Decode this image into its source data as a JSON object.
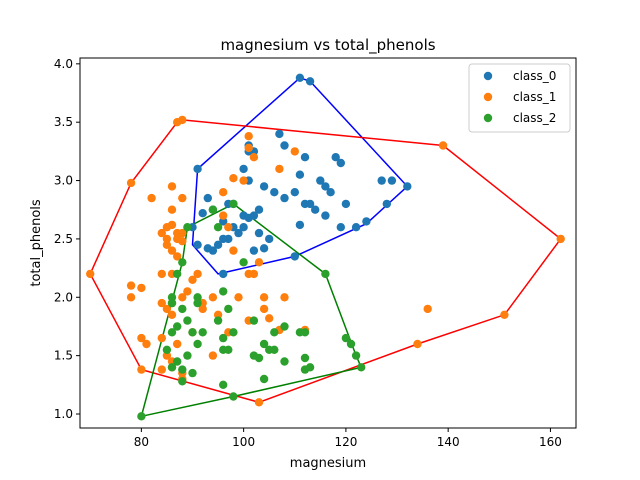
{
  "chart_data": {
    "type": "scatter",
    "title": "magnesium vs total_phenols",
    "xlabel": "magnesium",
    "ylabel": "total_phenols",
    "xlim": [
      68,
      165
    ],
    "ylim": [
      0.88,
      4.05
    ],
    "xticks": [
      80,
      100,
      120,
      140,
      160
    ],
    "xtick_labels": [
      "80",
      "100",
      "120",
      "140",
      "160"
    ],
    "yticks": [
      1.0,
      1.5,
      2.0,
      2.5,
      3.0,
      3.5,
      4.0
    ],
    "ytick_labels": [
      "1.0",
      "1.5",
      "2.0",
      "2.5",
      "3.0",
      "3.5",
      "4.0"
    ],
    "grid": false,
    "legend_position": "top-right",
    "series": [
      {
        "name": "class_0",
        "color": "#1f77b4",
        "hull_color": "#0000ff",
        "points": [
          [
            111,
            3.88
          ],
          [
            113,
            3.85
          ],
          [
            107,
            3.4
          ],
          [
            108,
            3.3
          ],
          [
            101,
            3.3
          ],
          [
            112,
            3.2
          ],
          [
            118,
            3.2
          ],
          [
            119,
            3.15
          ],
          [
            127,
            3.0
          ],
          [
            129,
            3.0
          ],
          [
            132,
            2.95
          ],
          [
            115,
            3.0
          ],
          [
            116,
            2.95
          ],
          [
            117,
            2.9
          ],
          [
            111,
            3.05
          ],
          [
            104,
            2.95
          ],
          [
            106,
            2.9
          ],
          [
            108,
            2.85
          ],
          [
            110,
            2.9
          ],
          [
            112,
            2.8
          ],
          [
            120,
            2.8
          ],
          [
            128,
            2.8
          ],
          [
            114,
            2.75
          ],
          [
            116,
            2.7
          ],
          [
            124,
            2.65
          ],
          [
            119,
            2.6
          ],
          [
            122,
            2.6
          ],
          [
            101,
            3.25
          ],
          [
            102,
            3.25
          ],
          [
            100,
            3.1
          ],
          [
            101,
            3.0
          ],
          [
            103,
            2.75
          ],
          [
            102,
            2.7
          ],
          [
            100,
            2.7
          ],
          [
            98,
            2.8
          ],
          [
            97,
            2.8
          ],
          [
            93,
            2.85
          ],
          [
            94,
            2.75
          ],
          [
            96,
            2.65
          ],
          [
            98,
            2.6
          ],
          [
            97,
            2.5
          ],
          [
            96,
            2.5
          ],
          [
            95,
            2.45
          ],
          [
            94,
            2.4
          ],
          [
            93,
            2.42
          ],
          [
            91,
            2.45
          ],
          [
            102,
            2.4
          ],
          [
            104,
            2.42
          ],
          [
            110,
            2.35
          ],
          [
            111,
            2.62
          ],
          [
            113,
            2.8
          ],
          [
            100,
            2.6
          ],
          [
            99,
            2.55
          ],
          [
            101,
            2.68
          ],
          [
            103,
            2.55
          ],
          [
            105,
            2.5
          ],
          [
            91,
            3.1
          ],
          [
            90,
            2.6
          ],
          [
            92,
            2.72
          ],
          [
            96,
            2.2
          ]
        ],
        "hull": [
          [
            111,
            3.88
          ],
          [
            113,
            3.85
          ],
          [
            132,
            2.95
          ],
          [
            124,
            2.63
          ],
          [
            110,
            2.35
          ],
          [
            97,
            2.22
          ],
          [
            95,
            2.2
          ],
          [
            90,
            2.45
          ],
          [
            91,
            3.1
          ]
        ]
      },
      {
        "name": "class_1",
        "color": "#ff7f0e",
        "hull_color": "#ff0000",
        "points": [
          [
            88,
            3.52
          ],
          [
            87,
            3.5
          ],
          [
            78,
            2.98
          ],
          [
            82,
            2.85
          ],
          [
            84,
            2.55
          ],
          [
            85,
            2.6
          ],
          [
            86,
            2.62
          ],
          [
            87,
            2.55
          ],
          [
            85,
            2.5
          ],
          [
            85,
            2.45
          ],
          [
            86,
            2.4
          ],
          [
            87,
            2.5
          ],
          [
            88,
            2.48
          ],
          [
            86,
            2.95
          ],
          [
            88,
            2.85
          ],
          [
            86,
            2.75
          ],
          [
            84,
            2.2
          ],
          [
            86,
            2.2
          ],
          [
            87,
            2.35
          ],
          [
            88,
            2.55
          ],
          [
            78,
            2.1
          ],
          [
            80,
            2.08
          ],
          [
            78,
            2.0
          ],
          [
            84,
            1.95
          ],
          [
            86,
            1.95
          ],
          [
            88,
            2.0
          ],
          [
            85,
            1.9
          ],
          [
            86,
            1.85
          ],
          [
            89,
            2.05
          ],
          [
            90,
            2.15
          ],
          [
            92,
            1.95
          ],
          [
            91,
            2.2
          ],
          [
            92,
            1.9
          ],
          [
            95,
            1.85
          ],
          [
            99,
            2.0
          ],
          [
            98,
            2.4
          ],
          [
            97,
            2.6
          ],
          [
            96,
            2.9
          ],
          [
            96,
            2.7
          ],
          [
            94,
            2.0
          ],
          [
            100,
            3.0
          ],
          [
            98,
            3.02
          ],
          [
            101,
            3.38
          ],
          [
            101,
            3.28
          ],
          [
            102,
            3.2
          ],
          [
            107,
            3.1
          ],
          [
            110,
            3.25
          ],
          [
            103,
            2.3
          ],
          [
            101,
            2.2
          ],
          [
            102,
            2.2
          ],
          [
            104,
            2.0
          ],
          [
            105,
            1.82
          ],
          [
            107,
            1.72
          ],
          [
            108,
            2.0
          ],
          [
            112,
            1.72
          ],
          [
            101,
            1.8
          ],
          [
            97,
            1.7
          ],
          [
            90,
            1.7
          ],
          [
            87,
            1.6
          ],
          [
            84,
            1.65
          ],
          [
            80,
            1.65
          ],
          [
            81,
            1.6
          ],
          [
            85,
            1.5
          ],
          [
            86,
            1.45
          ],
          [
            88,
            1.35
          ],
          [
            86,
            1.4
          ],
          [
            88,
            1.3
          ],
          [
            94,
            1.5
          ],
          [
            103,
            1.1
          ],
          [
            104,
            1.9
          ],
          [
            136,
            1.9
          ],
          [
            134,
            1.6
          ],
          [
            151,
            1.85
          ],
          [
            162,
            2.5
          ],
          [
            139,
            3.3
          ],
          [
            70,
            2.2
          ],
          [
            80,
            1.38
          ],
          [
            84,
            1.38
          ]
        ],
        "hull": [
          [
            88,
            3.52
          ],
          [
            139,
            3.3
          ],
          [
            162,
            2.5
          ],
          [
            151,
            1.85
          ],
          [
            134,
            1.6
          ],
          [
            103,
            1.1
          ],
          [
            80,
            1.38
          ],
          [
            70,
            2.2
          ],
          [
            78,
            2.98
          ],
          [
            87,
            3.5
          ]
        ]
      },
      {
        "name": "class_2",
        "color": "#2ca02c",
        "hull_color": "#008000",
        "points": [
          [
            88,
            2.3
          ],
          [
            87,
            2.2
          ],
          [
            86,
            2.0
          ],
          [
            86,
            1.95
          ],
          [
            88,
            1.9
          ],
          [
            87,
            1.75
          ],
          [
            89,
            1.8
          ],
          [
            90,
            1.7
          ],
          [
            91,
            1.6
          ],
          [
            92,
            1.7
          ],
          [
            86,
            1.7
          ],
          [
            85,
            1.55
          ],
          [
            86,
            1.4
          ],
          [
            87,
            1.45
          ],
          [
            88,
            1.38
          ],
          [
            90,
            1.35
          ],
          [
            89,
            1.5
          ],
          [
            91,
            1.95
          ],
          [
            91,
            2.0
          ],
          [
            95,
            1.8
          ],
          [
            96,
            2.05
          ],
          [
            97,
            1.9
          ],
          [
            96,
            1.55
          ],
          [
            97,
            1.55
          ],
          [
            96,
            1.65
          ],
          [
            98,
            1.7
          ],
          [
            102,
            1.8
          ],
          [
            102,
            1.5
          ],
          [
            103,
            1.48
          ],
          [
            104,
            1.6
          ],
          [
            105,
            1.55
          ],
          [
            106,
            1.7
          ],
          [
            106,
            1.55
          ],
          [
            108,
            1.75
          ],
          [
            108,
            1.45
          ],
          [
            111,
            1.7
          ],
          [
            112,
            1.7
          ],
          [
            112,
            1.48
          ],
          [
            112,
            1.38
          ],
          [
            113,
            1.4
          ],
          [
            104,
            1.3
          ],
          [
            100,
            2.3
          ],
          [
            98,
            2.8
          ],
          [
            95,
            2.6
          ],
          [
            89,
            2.6
          ],
          [
            116,
            2.2
          ],
          [
            120,
            1.65
          ],
          [
            121,
            1.6
          ],
          [
            122,
            1.5
          ],
          [
            123,
            1.4
          ],
          [
            80,
            0.98
          ],
          [
            98,
            1.15
          ],
          [
            96,
            1.25
          ],
          [
            88,
            1.28
          ],
          [
            94,
            2.75
          ]
        ],
        "hull": [
          [
            98,
            2.8
          ],
          [
            116,
            2.2
          ],
          [
            122,
            1.5
          ],
          [
            123,
            1.4
          ],
          [
            98,
            1.15
          ],
          [
            80,
            0.98
          ],
          [
            88,
            2.3
          ],
          [
            89,
            2.6
          ]
        ]
      }
    ]
  }
}
